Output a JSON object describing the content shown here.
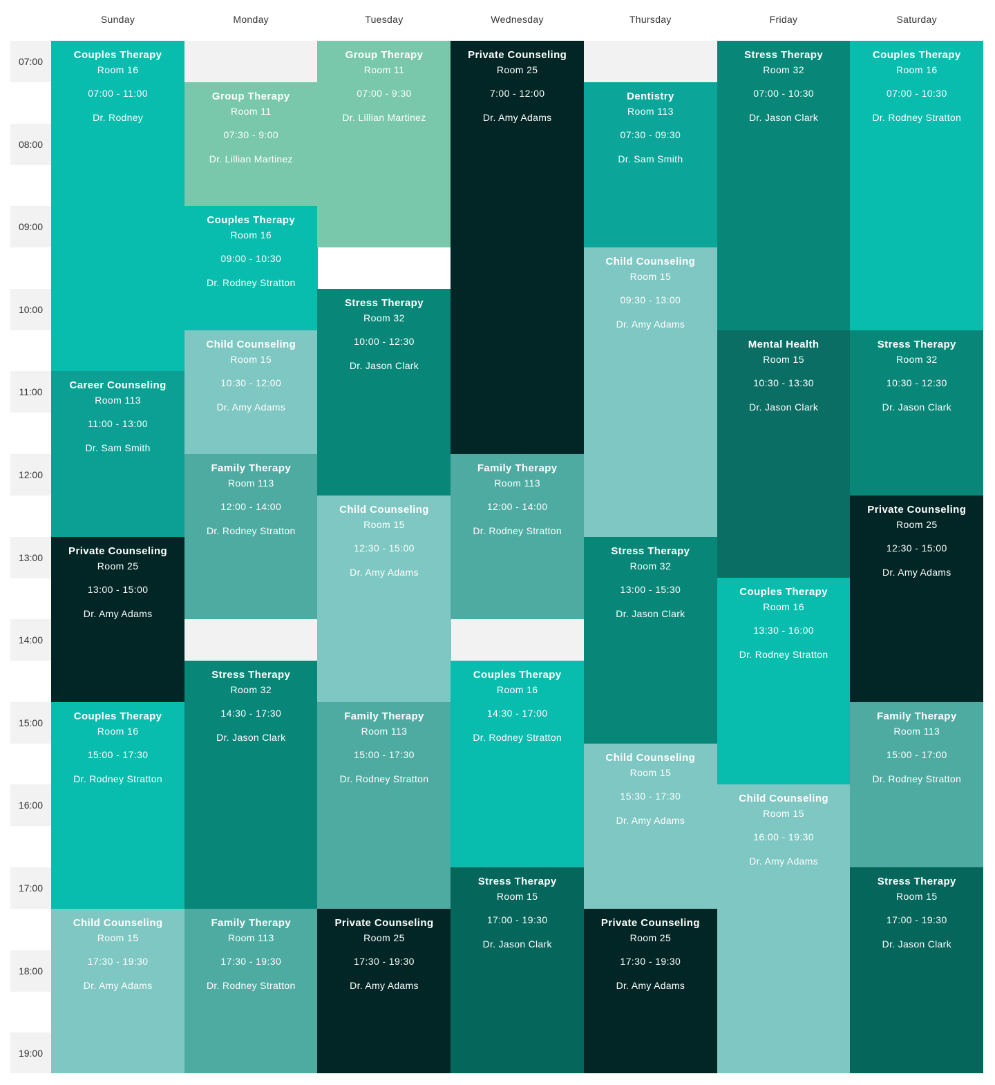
{
  "days": [
    "Sunday",
    "Monday",
    "Tuesday",
    "Wednesday",
    "Thursday",
    "Friday",
    "Saturday"
  ],
  "times": [
    "07:00",
    "08:00",
    "09:00",
    "10:00",
    "11:00",
    "12:00",
    "13:00",
    "14:00",
    "15:00",
    "16:00",
    "17:00",
    "18:00",
    "19:00"
  ],
  "schedule_start_hour": 7,
  "palette": {
    "couples": "#08bcae",
    "group": "#79c8ac",
    "private": "#022625",
    "stress": "#088779",
    "dentistry": "#0ba599",
    "child": "#7fc7c2",
    "career": "#0ca094",
    "mental": "#0a6e64",
    "family": "#4daba2",
    "stress_dark": "#05665c",
    "empty": "#f2f2f2"
  },
  "events": [
    {
      "day": 0,
      "start": "07:00",
      "end": "11:00",
      "title": "Couples Therapy",
      "room": "Room 16",
      "time": "07:00 - 11:00",
      "doctor": "Dr. Rodney",
      "color": "couples"
    },
    {
      "day": 0,
      "start": "11:00",
      "end": "13:00",
      "title": "Career Counseling",
      "room": "Room 113",
      "time": "11:00 - 13:00",
      "doctor": "Dr. Sam Smith",
      "color": "career"
    },
    {
      "day": 0,
      "start": "13:00",
      "end": "15:00",
      "title": "Private Counseling",
      "room": "Room 25",
      "time": "13:00 - 15:00",
      "doctor": "Dr. Amy Adams",
      "color": "private"
    },
    {
      "day": 0,
      "start": "15:00",
      "end": "17:30",
      "title": "Couples Therapy",
      "room": "Room 16",
      "time": "15:00 - 17:30",
      "doctor": "Dr. Rodney Stratton",
      "color": "couples"
    },
    {
      "day": 0,
      "start": "17:30",
      "end": "19:30",
      "title": "Child Counseling",
      "room": "Room 15",
      "time": "17:30 - 19:30",
      "doctor": "Dr. Amy Adams",
      "color": "child"
    },
    {
      "day": 1,
      "start": "07:30",
      "end": "09:00",
      "title": "Group Therapy",
      "room": "Room 11",
      "time": "07:30 - 9:00",
      "doctor": "Dr. Lillian Martinez",
      "color": "group"
    },
    {
      "day": 1,
      "start": "09:00",
      "end": "10:30",
      "title": "Couples Therapy",
      "room": "Room 16",
      "time": "09:00 - 10:30",
      "doctor": "Dr. Rodney Stratton",
      "color": "couples"
    },
    {
      "day": 1,
      "start": "10:30",
      "end": "12:00",
      "title": "Child Counseling",
      "room": "Room 15",
      "time": "10:30 - 12:00",
      "doctor": "Dr. Amy Adams",
      "color": "child"
    },
    {
      "day": 1,
      "start": "12:00",
      "end": "14:00",
      "title": "Family Therapy",
      "room": "Room 113",
      "time": "12:00 - 14:00",
      "doctor": "Dr. Rodney Stratton",
      "color": "family"
    },
    {
      "day": 1,
      "start": "14:30",
      "end": "17:30",
      "title": "Stress Therapy",
      "room": "Room 32",
      "time": "14:30 - 17:30",
      "doctor": "Dr. Jason Clark",
      "color": "stress"
    },
    {
      "day": 1,
      "start": "17:30",
      "end": "19:30",
      "title": "Family Therapy",
      "room": "Room 113",
      "time": "17:30 - 19:30",
      "doctor": "Dr. Rodney Stratton",
      "color": "family"
    },
    {
      "day": 2,
      "start": "07:00",
      "end": "09:30",
      "title": "Group Therapy",
      "room": "Room 11",
      "time": "07:00 - 9:30",
      "doctor": "Dr. Lillian Martinez",
      "color": "group"
    },
    {
      "day": 2,
      "start": "10:00",
      "end": "12:30",
      "title": "Stress Therapy",
      "room": "Room 32",
      "time": "10:00 - 12:30",
      "doctor": "Dr. Jason Clark",
      "color": "stress"
    },
    {
      "day": 2,
      "start": "12:30",
      "end": "15:00",
      "title": "Child Counseling",
      "room": "Room 15",
      "time": "12:30 - 15:00",
      "doctor": "Dr. Amy Adams",
      "color": "child"
    },
    {
      "day": 2,
      "start": "15:00",
      "end": "17:30",
      "title": "Family Therapy",
      "room": "Room 113",
      "time": "15:00 - 17:30",
      "doctor": "Dr. Rodney Stratton",
      "color": "family"
    },
    {
      "day": 2,
      "start": "17:30",
      "end": "19:30",
      "title": "Private Counseling",
      "room": "Room 25",
      "time": "17:30 - 19:30",
      "doctor": "Dr. Amy Adams",
      "color": "private"
    },
    {
      "day": 3,
      "start": "07:00",
      "end": "12:00",
      "title": "Private Counseling",
      "room": "Room 25",
      "time": "7:00 - 12:00",
      "doctor": "Dr. Amy Adams",
      "color": "private"
    },
    {
      "day": 3,
      "start": "12:00",
      "end": "14:00",
      "title": "Family Therapy",
      "room": "Room 113",
      "time": "12:00 - 14:00",
      "doctor": "Dr. Rodney Stratton",
      "color": "family"
    },
    {
      "day": 3,
      "start": "14:30",
      "end": "17:00",
      "title": "Couples Therapy",
      "room": "Room 16",
      "time": "14:30 - 17:00",
      "doctor": "Dr. Rodney Stratton",
      "color": "couples"
    },
    {
      "day": 3,
      "start": "17:00",
      "end": "19:30",
      "title": "Stress Therapy",
      "room": "Room 15",
      "time": "17:00 - 19:30",
      "doctor": "Dr. Jason Clark",
      "color": "stress_dark"
    },
    {
      "day": 4,
      "start": "07:30",
      "end": "09:30",
      "title": "Dentistry",
      "room": "Room 113",
      "time": "07:30 - 09:30",
      "doctor": "Dr. Sam Smith",
      "color": "dentistry"
    },
    {
      "day": 4,
      "start": "09:30",
      "end": "13:00",
      "title": "Child Counseling",
      "room": "Room 15",
      "time": "09:30 - 13:00",
      "doctor": "Dr. Amy Adams",
      "color": "child"
    },
    {
      "day": 4,
      "start": "13:00",
      "end": "15:30",
      "title": "Stress Therapy",
      "room": "Room 32",
      "time": "13:00 - 15:30",
      "doctor": "Dr. Jason Clark",
      "color": "stress"
    },
    {
      "day": 4,
      "start": "15:30",
      "end": "17:30",
      "title": "Child Counseling",
      "room": "Room 15",
      "time": "15:30 - 17:30",
      "doctor": "Dr. Amy Adams",
      "color": "child"
    },
    {
      "day": 4,
      "start": "17:30",
      "end": "19:30",
      "title": "Private Counseling",
      "room": "Room 25",
      "time": "17:30 - 19:30",
      "doctor": "Dr. Amy Adams",
      "color": "private"
    },
    {
      "day": 5,
      "start": "07:00",
      "end": "10:30",
      "title": "Stress Therapy",
      "room": "Room 32",
      "time": "07:00 - 10:30",
      "doctor": "Dr. Jason Clark",
      "color": "stress"
    },
    {
      "day": 5,
      "start": "10:30",
      "end": "13:30",
      "title": "Mental Health",
      "room": "Room 15",
      "time": "10:30 - 13:30",
      "doctor": "Dr. Jason Clark",
      "color": "mental"
    },
    {
      "day": 5,
      "start": "13:30",
      "end": "16:00",
      "title": "Couples Therapy",
      "room": "Room 16",
      "time": "13:30 - 16:00",
      "doctor": "Dr. Rodney Stratton",
      "color": "couples"
    },
    {
      "day": 5,
      "start": "16:00",
      "end": "19:30",
      "title": "Child Counseling",
      "room": "Room 15",
      "time": "16:00 - 19:30",
      "doctor": "Dr. Amy Adams",
      "color": "child"
    },
    {
      "day": 6,
      "start": "07:00",
      "end": "10:30",
      "title": "Couples Therapy",
      "room": "Room 16",
      "time": "07:00 - 10:30",
      "doctor": "Dr. Rodney Stratton",
      "color": "couples"
    },
    {
      "day": 6,
      "start": "10:30",
      "end": "12:30",
      "title": "Stress Therapy",
      "room": "Room 32",
      "time": "10:30 - 12:30",
      "doctor": "Dr. Jason Clark",
      "color": "stress"
    },
    {
      "day": 6,
      "start": "12:30",
      "end": "15:00",
      "title": "Private Counseling",
      "room": "Room 25",
      "time": "12:30 - 15:00",
      "doctor": "Dr. Amy Adams",
      "color": "private"
    },
    {
      "day": 6,
      "start": "15:00",
      "end": "17:00",
      "title": "Family Therapy",
      "room": "Room 113",
      "time": "15:00 - 17:00",
      "doctor": "Dr. Rodney Stratton",
      "color": "family"
    },
    {
      "day": 6,
      "start": "17:00",
      "end": "19:30",
      "title": "Stress Therapy",
      "room": "Room 15",
      "time": "17:00 - 19:30",
      "doctor": "Dr. Jason Clark",
      "color": "stress_dark"
    }
  ]
}
